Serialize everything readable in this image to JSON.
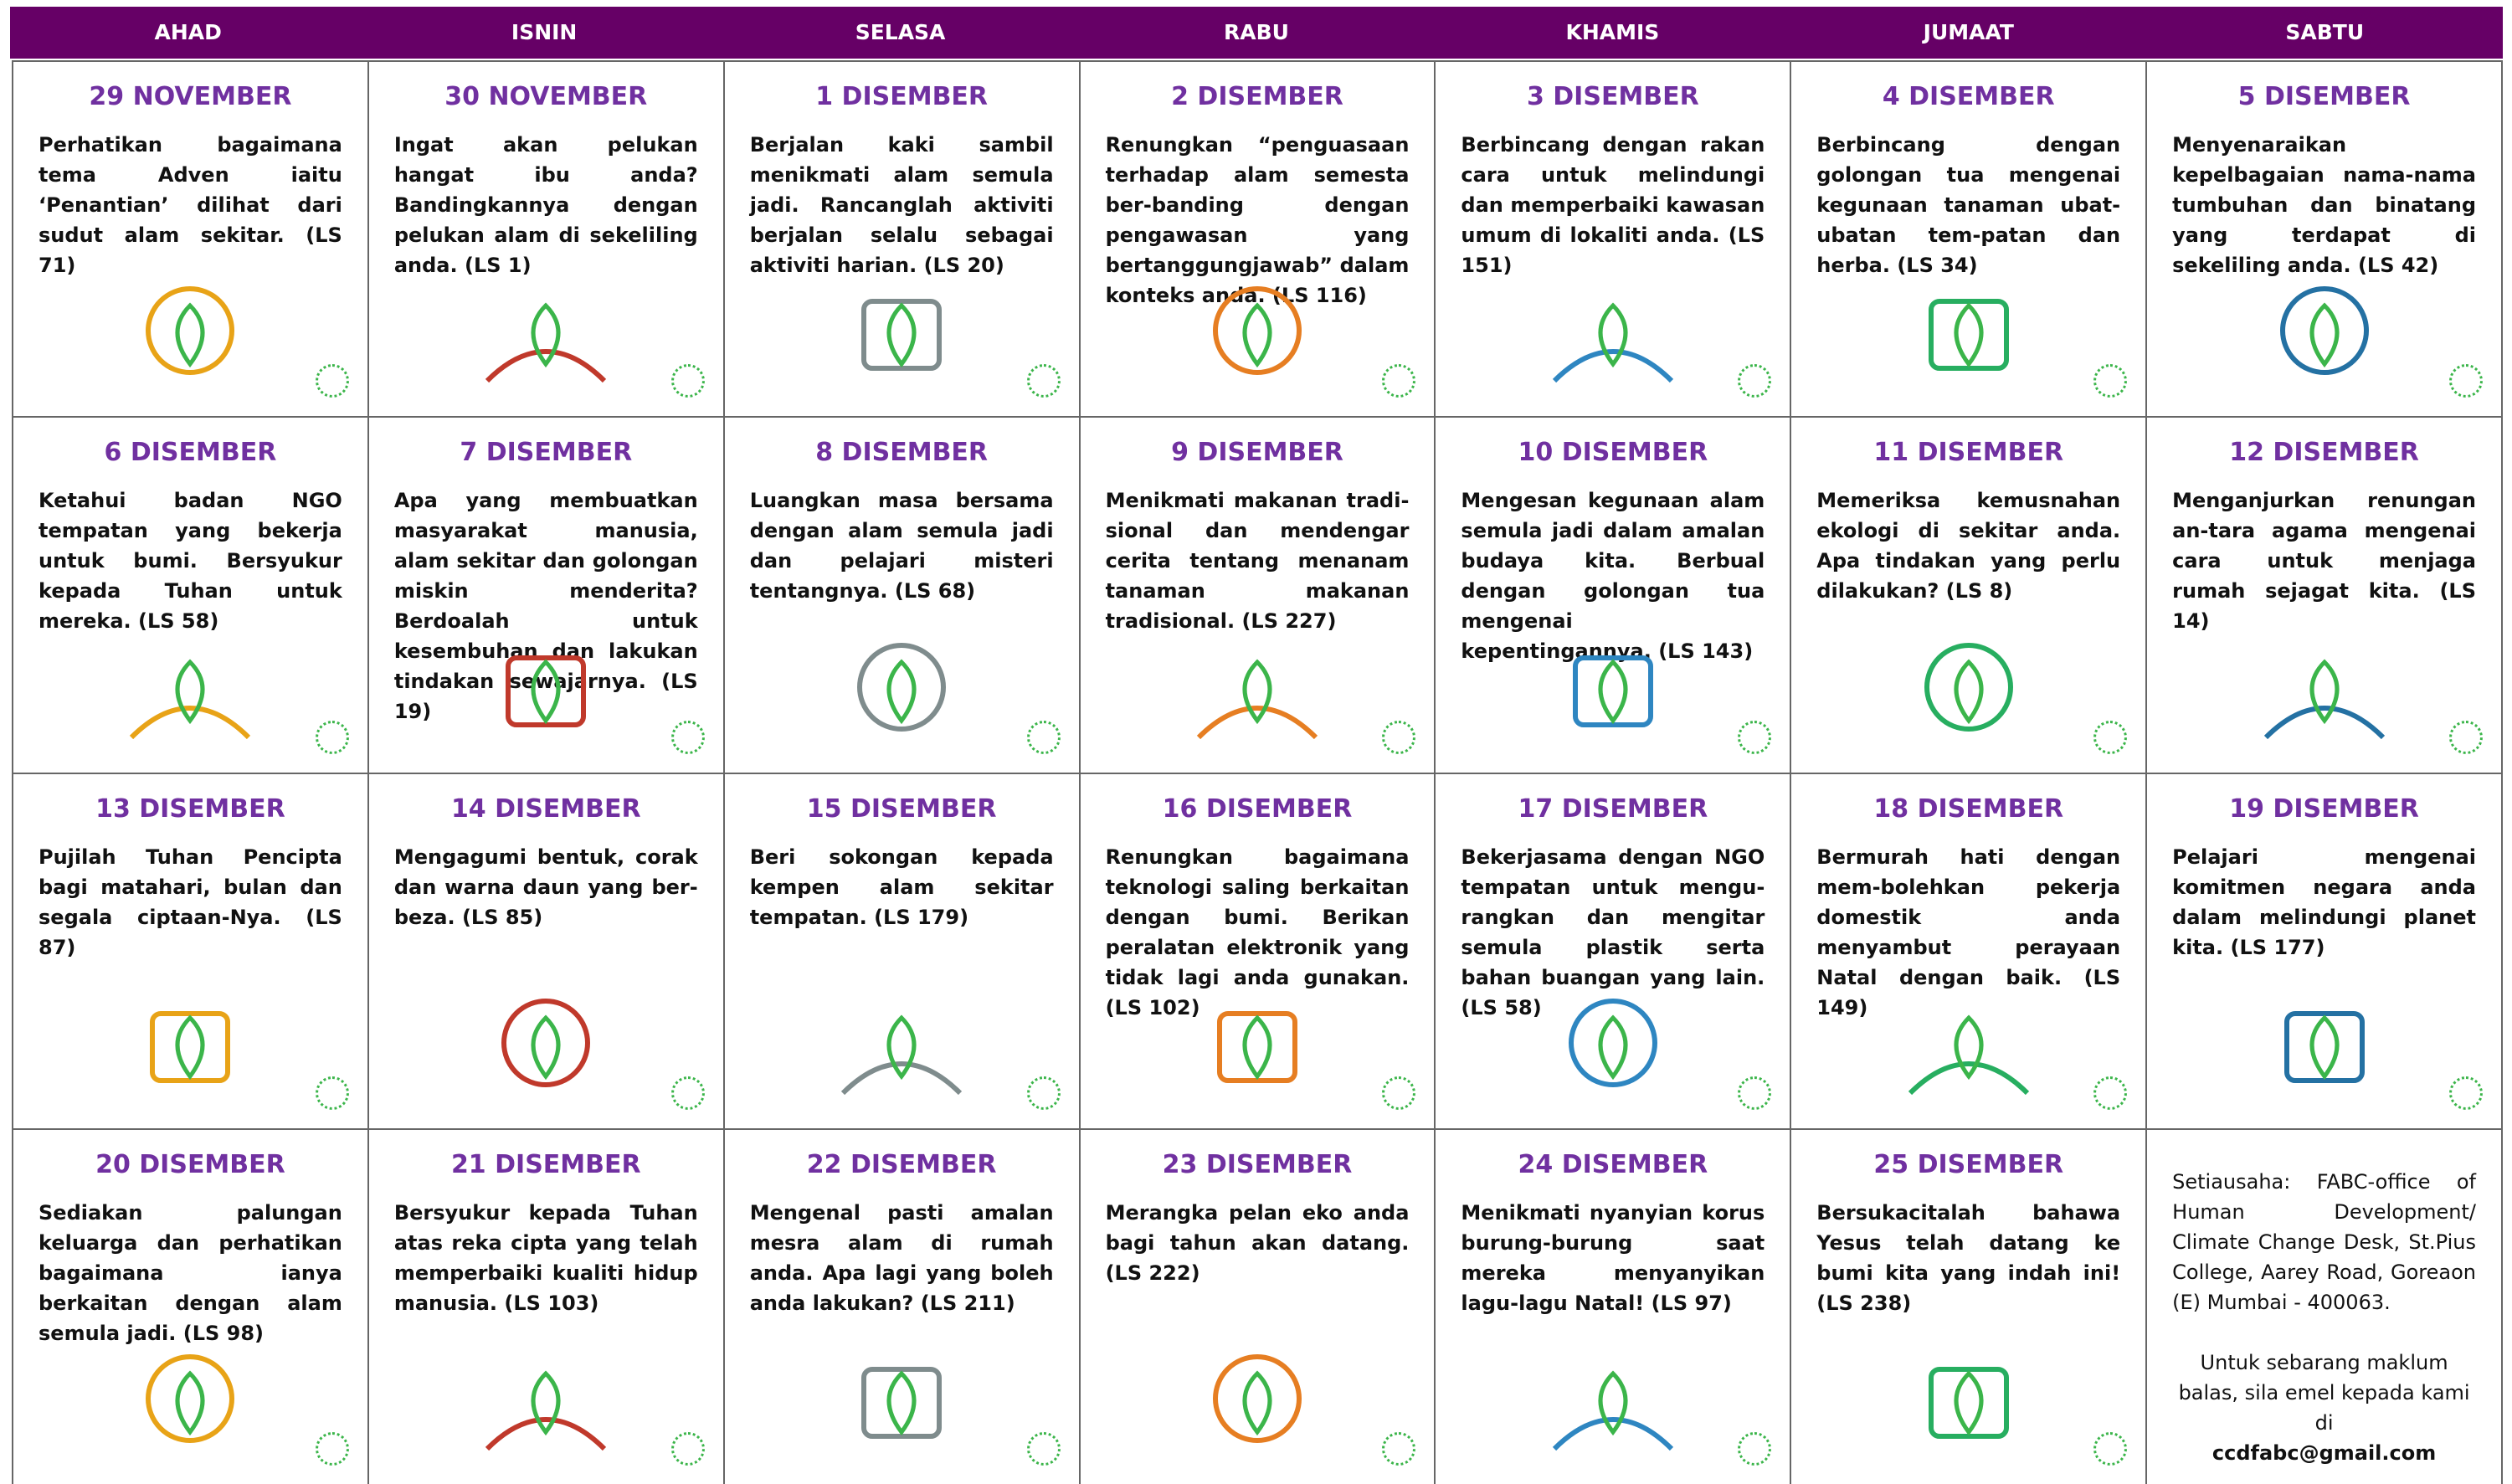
{
  "header": {
    "days": [
      "AHAD",
      "ISNIN",
      "SELASA",
      "RABU",
      "KHAMIS",
      "JUMAAT",
      "SABTU"
    ]
  },
  "cells": [
    {
      "date": "29 NOVEMBER",
      "text": "Perhatikan bagaimana tema Adven iaitu ‘Penantian’ dilihat dari sudut alam sekitar. (LS 71)"
    },
    {
      "date": "30 NOVEMBER",
      "text": "Ingat akan pelukan hangat ibu anda? Bandingkannya dengan pelukan alam di sekeliling anda. (LS 1)"
    },
    {
      "date": "1 DISEMBER",
      "text": "Berjalan kaki sambil menikmati alam semula jadi. Rancanglah aktiviti berjalan selalu sebagai aktiviti harian. (LS 20)"
    },
    {
      "date": "2 DISEMBER",
      "text": "Renungkan “penguasaan terhadap alam semesta ber-banding dengan pengawasan yang bertanggungjawab” dalam konteks anda. (LS 116)"
    },
    {
      "date": "3 DISEMBER",
      "text": "Berbincang dengan rakan cara untuk melindungi dan memperbaiki kawasan umum di lokaliti anda. (LS 151)"
    },
    {
      "date": "4 DISEMBER",
      "text": "Berbincang dengan golongan tua mengenai kegunaan tanaman ubat-ubatan tem-patan dan herba. (LS 34)"
    },
    {
      "date": "5 DISEMBER",
      "text": "Menyenaraikan kepelbagaian nama-nama tumbuhan dan binatang yang terdapat di sekeliling anda. (LS 42)"
    },
    {
      "date": "6 DISEMBER",
      "text": "Ketahui badan NGO tempatan yang bekerja untuk bumi. Bersyukur kepada Tuhan untuk mereka. (LS 58)"
    },
    {
      "date": "7 DISEMBER",
      "text": "Apa yang membuatkan masyarakat manusia, alam sekitar dan golongan miskin menderita? Berdoalah untuk kesembuhan dan lakukan tindakan sewajarnya. (LS 19)"
    },
    {
      "date": "8 DISEMBER",
      "text": "Luangkan masa bersama dengan alam semula jadi dan pelajari misteri tentangnya. (LS 68)"
    },
    {
      "date": "9 DISEMBER",
      "text": "Menikmati makanan tradi-sional dan mendengar cerita tentang menanam tanaman makanan tradisional. (LS 227)"
    },
    {
      "date": "10 DISEMBER",
      "text": "Mengesan kegunaan alam semula jadi dalam amalan budaya kita. Berbual dengan golongan tua mengenai kepentingannya. (LS 143)"
    },
    {
      "date": "11 DISEMBER",
      "text": "Memeriksa kemusnahan ekologi di sekitar anda. Apa tindakan yang perlu dilakukan? (LS 8)"
    },
    {
      "date": "12 DISEMBER",
      "text": "Menganjurkan renungan an-tara agama mengenai cara untuk menjaga rumah sejagat kita. (LS 14)"
    },
    {
      "date": "13 DISEMBER",
      "text": "Pujilah Tuhan Pencipta bagi matahari, bulan dan segala ciptaan-Nya. (LS 87)"
    },
    {
      "date": "14 DISEMBER",
      "text": "Mengagumi bentuk, corak dan warna daun yang ber-beza. (LS 85)"
    },
    {
      "date": "15 DISEMBER",
      "text": "Beri sokongan kepada kempen alam sekitar tempatan. (LS 179)"
    },
    {
      "date": "16 DISEMBER",
      "text": "Renungkan bagaimana teknologi saling berkaitan dengan bumi. Berikan peralatan elektronik yang tidak lagi anda gunakan. (LS 102)"
    },
    {
      "date": "17 DISEMBER",
      "text": "Bekerjasama dengan NGO tempatan untuk mengu-rangkan dan mengitar semula plastik serta bahan buangan yang lain. (LS 58)"
    },
    {
      "date": "18 DISEMBER",
      "text": "Bermurah hati dengan mem-bolehkan pekerja domestik anda menyambut perayaan Natal dengan baik. (LS 149)"
    },
    {
      "date": "19 DISEMBER",
      "text": "Pelajari mengenai komitmen negara anda dalam melindungi planet kita. (LS 177)"
    },
    {
      "date": "20 DISEMBER",
      "text": "Sediakan palungan keluarga dan perhatikan bagaimana ianya berkaitan dengan alam semula jadi. (LS 98)"
    },
    {
      "date": "21 DISEMBER",
      "text": "Bersyukur kepada Tuhan atas reka cipta yang telah memperbaiki kualiti hidup manusia. (LS 103)"
    },
    {
      "date": "22 DISEMBER",
      "text": "Mengenal pasti amalan mesra alam di rumah anda. Apa lagi yang boleh anda lakukan? (LS 211)"
    },
    {
      "date": "23 DISEMBER",
      "text": "Merangka pelan eko anda bagi tahun akan datang. (LS 222)"
    },
    {
      "date": "24 DISEMBER",
      "text": "Menikmati nyanyian korus burung-burung saat mereka menyanyikan lagu-lagu Natal! (LS 97)"
    },
    {
      "date": "25 DISEMBER",
      "text": "Bersukacitalah bahawa Yesus telah datang ke bumi kita yang indah ini! (LS 238)"
    }
  ],
  "contact": {
    "address": "Setiausaha: FABC-office of Human Development/ Climate Change Desk, St.Pius College, Aarey Road, Goreaon (E) Mumbai - 400063.",
    "note": "Untuk sebarang maklum balas, sila emel kepada kami di",
    "email": "ccdfabc@gmail.com"
  }
}
